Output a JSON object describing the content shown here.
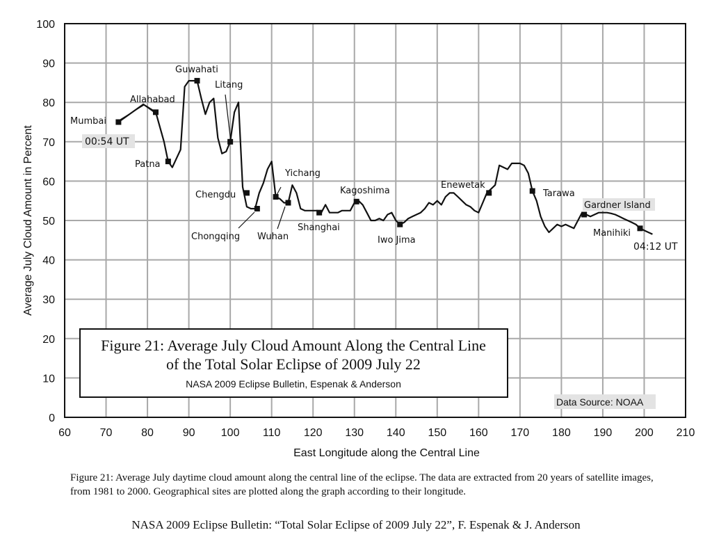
{
  "chart_data": {
    "type": "line",
    "title": "Figure 21: Average July Cloud Amount Along the Central Line",
    "title_line2": "of the Total Solar Eclipse of 2009 July 22",
    "subtitle": "NASA 2009 Eclipse Bulletin, Espenak & Anderson",
    "source": "Data Source: NOAA",
    "xlabel": "East Longitude along the Central Line",
    "ylabel": "Average July Cloud Amount in Percent",
    "xlim": [
      60,
      210
    ],
    "ylim": [
      0,
      100
    ],
    "xticks": [
      60,
      70,
      80,
      90,
      100,
      110,
      120,
      130,
      140,
      150,
      160,
      170,
      180,
      190,
      200,
      210
    ],
    "yticks": [
      0,
      10,
      20,
      30,
      40,
      50,
      60,
      70,
      80,
      90,
      100
    ],
    "grid": true,
    "start_label": "00:54 UT",
    "end_label": "04:12 UT",
    "series": [
      {
        "x": [
          73,
          79,
          82,
          84,
          85,
          86,
          88,
          89,
          90,
          92,
          93,
          94,
          95,
          96,
          97,
          98,
          99,
          100,
          101,
          102,
          103,
          104,
          105,
          106,
          107,
          108,
          109,
          110,
          111,
          112,
          113,
          114,
          115,
          116,
          117,
          118,
          119,
          120,
          121,
          122,
          123,
          124,
          125,
          126,
          127,
          128,
          129,
          130,
          131,
          132,
          133,
          134,
          135,
          136,
          137,
          138,
          139,
          140,
          141,
          142,
          143,
          144,
          145,
          146,
          147,
          148,
          149,
          150,
          151,
          152,
          153,
          154,
          155,
          156,
          157,
          158,
          159,
          160,
          161,
          162,
          163,
          164,
          165,
          166,
          167,
          168,
          169,
          170,
          171,
          172,
          173,
          174,
          175,
          176,
          177,
          178,
          179,
          180,
          181,
          182,
          183,
          184,
          185,
          186,
          187,
          188,
          189,
          190,
          191,
          192,
          193,
          194,
          195,
          196,
          197,
          198,
          199,
          200,
          201,
          202
        ],
        "y": [
          75,
          79.5,
          77.5,
          70,
          65,
          63.5,
          68,
          84,
          85.5,
          85.5,
          81,
          77,
          80,
          81,
          71,
          67,
          67.5,
          70,
          77.5,
          80,
          58.5,
          53.5,
          53,
          53,
          57,
          59.5,
          63,
          65,
          56,
          55.5,
          54.5,
          54.5,
          59,
          57,
          53,
          52.5,
          52.5,
          52.5,
          52.5,
          52,
          54,
          52,
          52,
          52,
          52.5,
          52.5,
          52.5,
          54.5,
          55,
          54,
          52,
          50,
          50,
          50.5,
          50,
          51.5,
          52,
          50,
          49,
          49.5,
          50.5,
          51,
          51.5,
          52,
          53,
          54.5,
          54,
          55,
          54,
          56,
          57,
          57,
          56,
          55,
          54,
          53.5,
          52.5,
          52,
          54.5,
          57,
          58,
          59,
          64,
          63.5,
          63,
          64.5,
          64.5,
          64.5,
          64,
          62,
          57.5,
          55,
          51,
          48.5,
          47,
          48,
          49,
          48.5,
          49,
          48.5,
          48,
          50,
          52,
          51.5,
          51,
          51.5,
          52,
          52,
          52,
          51.8,
          51.5,
          51,
          50.5,
          50,
          49.5,
          49,
          48,
          47.5,
          47,
          46.5
        ]
      }
    ],
    "markers": [
      {
        "name": "Mumbai",
        "x": 73,
        "y": 75
      },
      {
        "name": "Allahabad",
        "x": 82,
        "y": 77.5
      },
      {
        "name": "Patna",
        "x": 85,
        "y": 65
      },
      {
        "name": "Guwahati",
        "x": 92,
        "y": 85.5
      },
      {
        "name": "Litang",
        "x": 100,
        "y": 70
      },
      {
        "name": "Chengdu",
        "x": 104,
        "y": 57
      },
      {
        "name": "Chongqing",
        "x": 106.5,
        "y": 53
      },
      {
        "name": "Yichang",
        "x": 111,
        "y": 56
      },
      {
        "name": "Wuhan",
        "x": 114,
        "y": 54.5
      },
      {
        "name": "Shanghai",
        "x": 121.5,
        "y": 52
      },
      {
        "name": "Kagoshima",
        "x": 130.5,
        "y": 54.8
      },
      {
        "name": "Iwo Jima",
        "x": 141,
        "y": 49
      },
      {
        "name": "Enewetak",
        "x": 162.5,
        "y": 57
      },
      {
        "name": "Tarawa",
        "x": 173,
        "y": 57.5
      },
      {
        "name": "Gardner Island",
        "x": 185.5,
        "y": 51.5
      },
      {
        "name": "Manihiki",
        "x": 199,
        "y": 48
      }
    ]
  },
  "caption": "Figure 21: Average July daytime cloud amount along the central line of the eclipse. The data are extracted from 20 years of satellite images, from 1981 to 2000. Geographical sites are plotted along the graph according to their longitude.",
  "footer": "NASA 2009 Eclipse Bulletin: “Total Solar Eclipse of 2009 July 22”, F. Espenak & J. Anderson"
}
